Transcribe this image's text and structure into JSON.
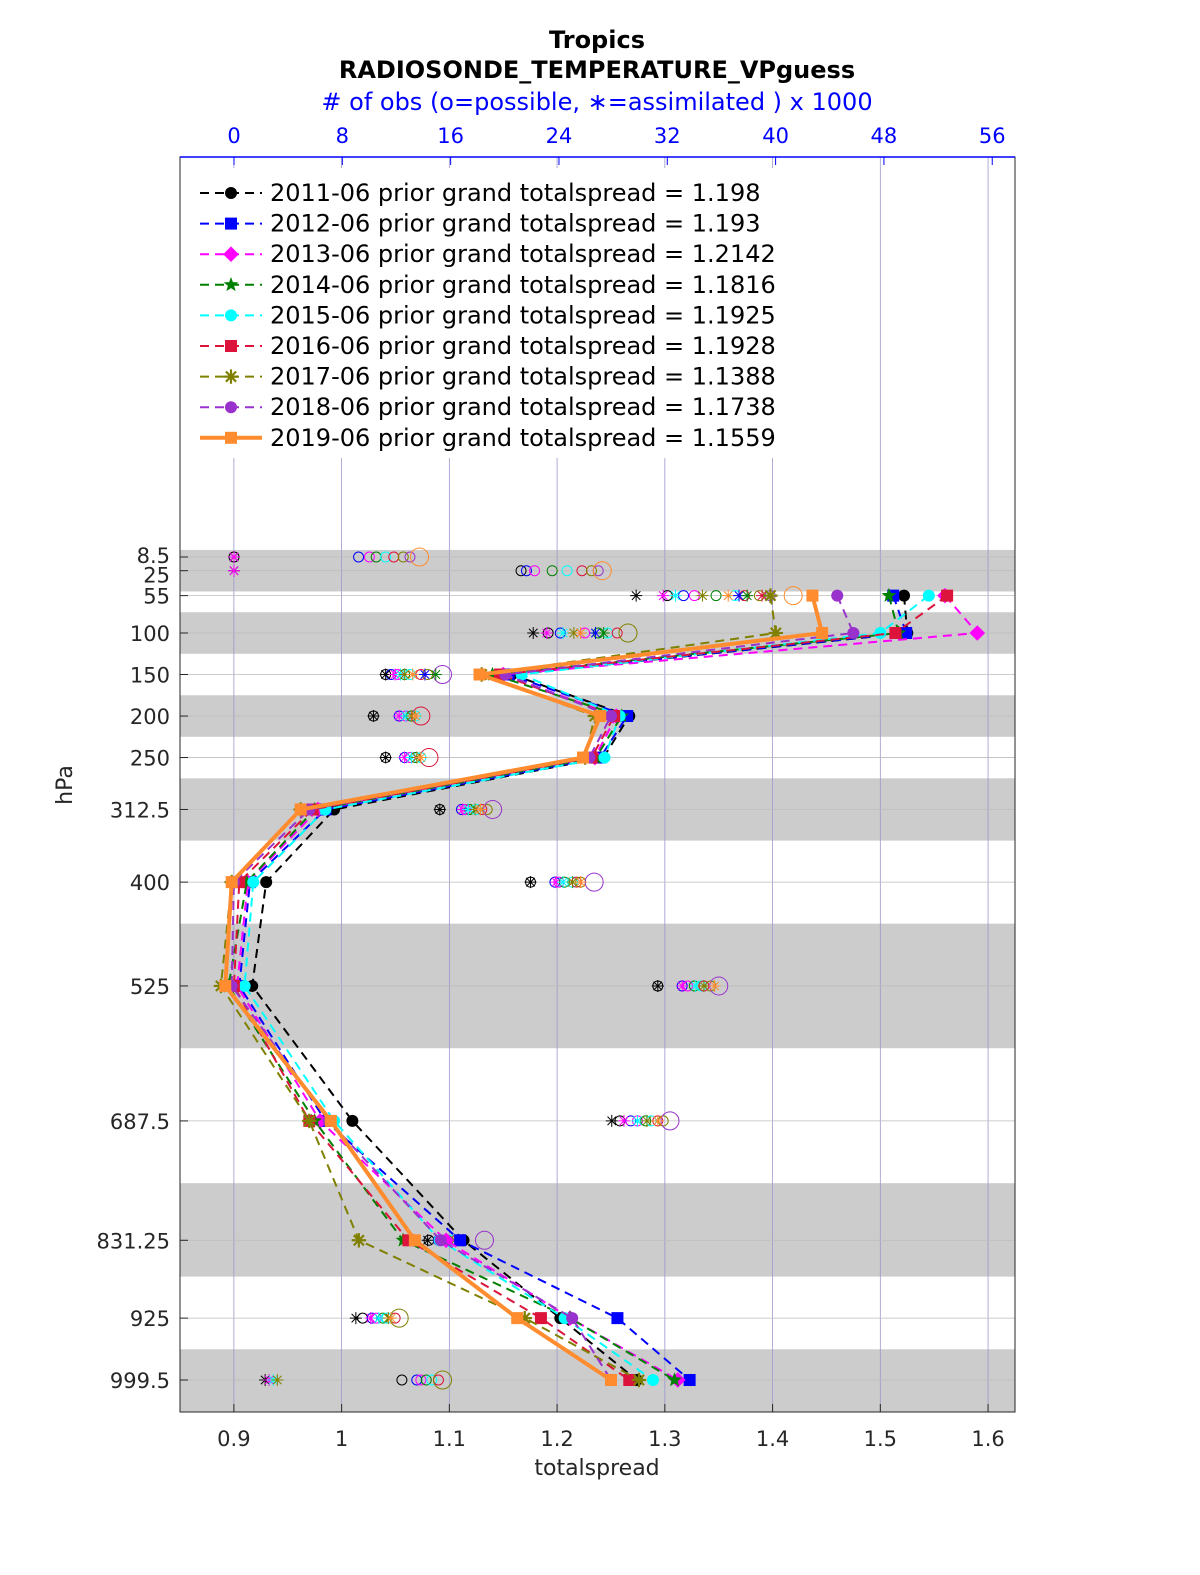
{
  "chart_data": {
    "type": "line",
    "title": "Tropics",
    "subtitle": "RADIOSONDE_TEMPERATURE_VPguess",
    "top_axis_label": "# of obs (o=possible, ∗=assimilated ) x 1000",
    "xlabel": "totalspread",
    "ylabel": "hPa",
    "xlim": [
      0.85,
      1.625
    ],
    "x_ticks": [
      "0.9",
      "1",
      "1.1",
      "1.2",
      "1.3",
      "1.4",
      "1.5",
      "1.6"
    ],
    "top_ticks": [
      "0",
      "8",
      "16",
      "24",
      "32",
      "40",
      "48",
      "56"
    ],
    "y_levels": [
      "8.5",
      "25",
      "55",
      "100",
      "150",
      "200",
      "250",
      "312.5",
      "400",
      "525",
      "687.5",
      "831.25",
      "925",
      "999.5"
    ],
    "bands": [
      [
        0,
        50
      ],
      [
        75,
        125
      ],
      [
        175,
        225
      ],
      [
        275,
        350
      ],
      [
        450,
        600
      ],
      [
        762.5,
        875
      ],
      [
        962.5,
        1037.5
      ]
    ],
    "obs_note": "left-side markers show observation counts (possible vs assimilated) per level",
    "series": [
      {
        "name": "2011-06",
        "label": "2011-06 prior grand totalspread = 1.198",
        "color": "#000000",
        "marker": "circle",
        "dash": "9,6",
        "width": 2,
        "values": [
          {
            "p": 55,
            "x": 1.522
          },
          {
            "p": 100,
            "x": 1.525
          },
          {
            "p": 150,
            "x": 1.158
          },
          {
            "p": 200,
            "x": 1.267
          },
          {
            "p": 250,
            "x": 1.243
          },
          {
            "p": 312.5,
            "x": 0.993
          },
          {
            "p": 400,
            "x": 0.93
          },
          {
            "p": 525,
            "x": 0.917
          },
          {
            "p": 687.5,
            "x": 1.01
          },
          {
            "p": 831.25,
            "x": 1.113
          },
          {
            "p": 925,
            "x": 1.203
          },
          {
            "p": 999.5,
            "x": 1.274
          }
        ]
      },
      {
        "name": "2012-06",
        "label": "2012-06 prior grand totalspread = 1.193",
        "color": "#0000ff",
        "marker": "square",
        "dash": "9,6",
        "width": 2,
        "values": [
          {
            "p": 55,
            "x": 1.512
          },
          {
            "p": 100,
            "x": 1.524
          },
          {
            "p": 150,
            "x": 1.155
          },
          {
            "p": 200,
            "x": 1.265
          },
          {
            "p": 250,
            "x": 1.24
          },
          {
            "p": 312.5,
            "x": 0.985
          },
          {
            "p": 400,
            "x": 0.915
          },
          {
            "p": 525,
            "x": 0.905
          },
          {
            "p": 687.5,
            "x": 0.985
          },
          {
            "p": 831.25,
            "x": 1.11
          },
          {
            "p": 925,
            "x": 1.256
          },
          {
            "p": 999.5,
            "x": 1.323
          }
        ]
      },
      {
        "name": "2013-06",
        "label": "2013-06 prior grand totalspread = 1.2142",
        "color": "#ff00ff",
        "marker": "diamond",
        "dash": "9,6",
        "width": 2,
        "values": [
          {
            "p": 55,
            "x": 1.56
          },
          {
            "p": 100,
            "x": 1.59
          },
          {
            "p": 150,
            "x": 1.15
          },
          {
            "p": 200,
            "x": 1.255
          },
          {
            "p": 250,
            "x": 1.235
          },
          {
            "p": 312.5,
            "x": 0.978
          },
          {
            "p": 400,
            "x": 0.913
          },
          {
            "p": 525,
            "x": 0.903
          },
          {
            "p": 687.5,
            "x": 0.98
          },
          {
            "p": 831.25,
            "x": 1.097
          },
          {
            "p": 925,
            "x": 1.212
          },
          {
            "p": 999.5,
            "x": 1.312
          }
        ]
      },
      {
        "name": "2014-06",
        "label": "2014-06 prior grand totalspread = 1.1816",
        "color": "#008000",
        "marker": "star",
        "dash": "9,6",
        "width": 2,
        "values": [
          {
            "p": 55,
            "x": 1.508
          },
          {
            "p": 100,
            "x": 1.517
          },
          {
            "p": 150,
            "x": 1.14
          },
          {
            "p": 200,
            "x": 1.26
          },
          {
            "p": 250,
            "x": 1.236
          },
          {
            "p": 312.5,
            "x": 0.975
          },
          {
            "p": 400,
            "x": 0.912
          },
          {
            "p": 525,
            "x": 0.895
          },
          {
            "p": 687.5,
            "x": 0.975
          },
          {
            "p": 831.25,
            "x": 1.057
          },
          {
            "p": 925,
            "x": 1.212
          },
          {
            "p": 999.5,
            "x": 1.309
          }
        ]
      },
      {
        "name": "2015-06",
        "label": "2015-06 prior grand totalspread = 1.1925",
        "color": "#00ffff",
        "marker": "circle",
        "dash": "9,6",
        "width": 2,
        "values": [
          {
            "p": 55,
            "x": 1.545
          },
          {
            "p": 100,
            "x": 1.5
          },
          {
            "p": 150,
            "x": 1.167
          },
          {
            "p": 200,
            "x": 1.258
          },
          {
            "p": 250,
            "x": 1.244
          },
          {
            "p": 312.5,
            "x": 0.985
          },
          {
            "p": 400,
            "x": 0.918
          },
          {
            "p": 525,
            "x": 0.91
          },
          {
            "p": 687.5,
            "x": 0.993
          },
          {
            "p": 831.25,
            "x": 1.091
          },
          {
            "p": 925,
            "x": 1.207
          },
          {
            "p": 999.5,
            "x": 1.289
          }
        ]
      },
      {
        "name": "2016-06",
        "label": "2016-06 prior grand totalspread = 1.1928",
        "color": "#dc143c",
        "marker": "square",
        "dash": "9,6",
        "width": 2,
        "values": [
          {
            "p": 55,
            "x": 1.562
          },
          {
            "p": 100,
            "x": 1.514
          },
          {
            "p": 150,
            "x": 1.147
          },
          {
            "p": 200,
            "x": 1.253
          },
          {
            "p": 250,
            "x": 1.232
          },
          {
            "p": 312.5,
            "x": 0.973
          },
          {
            "p": 400,
            "x": 0.905
          },
          {
            "p": 525,
            "x": 0.9
          },
          {
            "p": 687.5,
            "x": 0.97
          },
          {
            "p": 831.25,
            "x": 1.062
          },
          {
            "p": 925,
            "x": 1.185
          },
          {
            "p": 999.5,
            "x": 1.267
          }
        ]
      },
      {
        "name": "2017-06",
        "label": "2017-06 prior grand totalspread = 1.1388",
        "color": "#808000",
        "marker": "asterisk",
        "dash": "9,6",
        "width": 2,
        "values": [
          {
            "p": 55,
            "x": 1.398
          },
          {
            "p": 100,
            "x": 1.403
          },
          {
            "p": 150,
            "x": 1.13
          },
          {
            "p": 200,
            "x": 1.235
          },
          {
            "p": 250,
            "x": 1.226
          },
          {
            "p": 312.5,
            "x": 0.962
          },
          {
            "p": 400,
            "x": 0.898
          },
          {
            "p": 525,
            "x": 0.888
          },
          {
            "p": 687.5,
            "x": 0.97
          },
          {
            "p": 831.25,
            "x": 1.016
          },
          {
            "p": 925,
            "x": 1.17
          },
          {
            "p": 999.5,
            "x": 1.276
          }
        ]
      },
      {
        "name": "2018-06",
        "label": "2018-06 prior grand totalspread = 1.1738",
        "color": "#9932cc",
        "marker": "circle",
        "dash": "9,6",
        "width": 2,
        "values": [
          {
            "p": 55,
            "x": 1.46
          },
          {
            "p": 100,
            "x": 1.475
          },
          {
            "p": 150,
            "x": 1.152
          },
          {
            "p": 200,
            "x": 1.25
          },
          {
            "p": 250,
            "x": 1.23
          },
          {
            "p": 312.5,
            "x": 0.97
          },
          {
            "p": 400,
            "x": 0.9
          },
          {
            "p": 525,
            "x": 0.898
          },
          {
            "p": 687.5,
            "x": 0.988
          },
          {
            "p": 831.25,
            "x": 1.092
          },
          {
            "p": 925,
            "x": 1.214
          },
          {
            "p": 999.5,
            "x": 1.25
          }
        ]
      },
      {
        "name": "2019-06",
        "label": "2019-06 prior grand totalspread = 1.1559",
        "color": "#ff8c2e",
        "marker": "square",
        "dash": "",
        "width": 4,
        "values": [
          {
            "p": 55,
            "x": 1.437
          },
          {
            "p": 100,
            "x": 1.446
          },
          {
            "p": 150,
            "x": 1.128
          },
          {
            "p": 200,
            "x": 1.24
          },
          {
            "p": 250,
            "x": 1.224
          },
          {
            "p": 312.5,
            "x": 0.962
          },
          {
            "p": 400,
            "x": 0.898
          },
          {
            "p": 525,
            "x": 0.892
          },
          {
            "p": 687.5,
            "x": 0.99
          },
          {
            "p": 831.25,
            "x": 1.068
          },
          {
            "p": 925,
            "x": 1.163
          },
          {
            "p": 999.5,
            "x": 1.25
          }
        ]
      }
    ],
    "obs_counts": [
      {
        "p": 8.5,
        "possible": [
          0.0,
          9.2,
          10.0,
          10.5,
          11.2,
          11.8,
          12.5,
          13.0,
          13.7
        ],
        "assimilated": [
          0.0,
          0.0
        ]
      },
      {
        "p": 25,
        "possible": [
          21.2,
          21.6,
          22.2,
          23.5,
          24.6,
          25.7,
          26.4,
          26.9,
          27.2
        ],
        "assimilated": [
          0.0,
          0.0
        ]
      },
      {
        "p": 55,
        "possible": [
          32.0,
          33.2,
          34.0,
          35.6,
          37.0,
          37.7,
          38.8,
          39.6,
          41.3
        ],
        "assimilated": [
          29.7,
          31.7,
          32.6,
          34.6,
          36.5,
          37.3,
          37.9,
          39.0
        ]
      },
      {
        "p": 100,
        "possible": [
          23.2,
          24.1,
          25.9,
          26.9,
          27.6,
          28.3,
          29.1
        ],
        "assimilated": [
          22.1,
          23.1,
          24.3,
          25.1,
          25.6,
          26.7,
          27.3
        ]
      },
      {
        "p": 150,
        "possible": [
          11.2,
          11.6,
          12.1,
          12.6,
          13.0,
          13.8,
          14.3,
          15.4
        ],
        "assimilated": [
          11.2,
          11.9,
          12.3,
          12.6,
          13.2,
          14.1,
          14.9
        ]
      },
      {
        "p": 200,
        "possible": [
          10.3,
          12.2,
          12.7,
          13.1,
          13.4,
          13.8
        ],
        "assimilated": [
          10.3,
          12.2,
          12.7,
          13.1,
          13.4
        ]
      },
      {
        "p": 250,
        "possible": [
          11.2,
          12.6,
          13.0,
          13.4,
          13.8,
          14.4
        ],
        "assimilated": [
          11.2,
          12.6,
          13.1,
          13.5,
          13.8
        ]
      },
      {
        "p": 312.5,
        "possible": [
          15.2,
          16.8,
          17.1,
          17.4,
          17.9,
          18.3,
          18.7,
          19.1
        ],
        "assimilated": [
          15.2,
          16.9,
          17.3,
          17.8,
          18.2
        ]
      },
      {
        "p": 400,
        "possible": [
          21.9,
          23.7,
          24.0,
          24.4,
          25.0,
          25.3,
          25.6,
          26.6
        ],
        "assimilated": [
          21.9,
          23.8,
          24.3,
          25.0,
          25.6
        ]
      },
      {
        "p": 525,
        "possible": [
          31.3,
          33.1,
          33.5,
          34.0,
          34.5,
          34.7,
          35.2,
          35.8
        ],
        "assimilated": [
          31.3,
          33.1,
          34.1,
          34.7,
          35.5
        ]
      },
      {
        "p": 687.5,
        "possible": [
          28.5,
          29.3,
          29.8,
          30.4,
          30.8,
          31.3,
          31.7,
          32.2
        ],
        "assimilated": [
          27.9,
          28.8,
          29.8,
          30.5,
          31.3
        ]
      },
      {
        "p": 831.25,
        "possible": [
          14.4,
          15.1,
          15.4,
          15.8,
          16.1,
          16.4,
          17.0,
          18.5
        ],
        "assimilated": [
          14.3,
          15.2,
          15.8,
          16.3,
          16.9
        ]
      },
      {
        "p": 925,
        "possible": [
          9.5,
          10.2,
          10.5,
          11.0,
          11.3,
          11.9,
          12.2
        ],
        "assimilated": [
          9.0,
          10.1,
          10.7,
          11.4,
          11.6
        ]
      },
      {
        "p": 999.5,
        "possible": [
          12.4,
          13.5,
          13.8,
          14.2,
          14.6,
          15.1,
          15.4
        ],
        "assimilated": [
          2.3,
          2.6,
          2.9,
          3.2
        ]
      }
    ]
  }
}
